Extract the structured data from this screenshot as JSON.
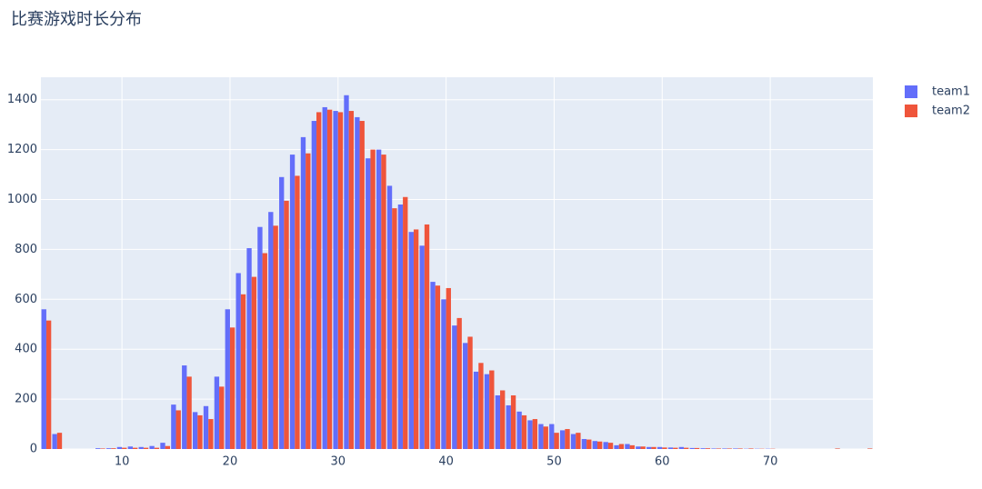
{
  "chart_data": {
    "type": "bar",
    "title": "比赛游戏时长分布",
    "x": [
      3,
      4,
      5,
      6,
      7,
      8,
      9,
      10,
      11,
      12,
      13,
      14,
      15,
      16,
      17,
      18,
      19,
      20,
      21,
      22,
      23,
      24,
      25,
      26,
      27,
      28,
      29,
      30,
      31,
      32,
      33,
      34,
      35,
      36,
      37,
      38,
      39,
      40,
      41,
      42,
      43,
      44,
      45,
      46,
      47,
      48,
      49,
      50,
      51,
      52,
      53,
      54,
      55,
      56,
      57,
      58,
      59,
      60,
      61,
      62,
      63,
      64,
      65,
      66,
      67,
      68,
      69,
      70,
      71,
      72,
      73,
      74,
      75,
      76,
      77,
      78,
      79
    ],
    "series": [
      {
        "name": "team1",
        "color": "#636efa",
        "values": [
          560,
          60,
          0,
          0,
          0,
          3,
          3,
          8,
          10,
          8,
          12,
          25,
          178,
          335,
          148,
          172,
          290,
          560,
          705,
          805,
          890,
          950,
          1090,
          1180,
          1250,
          1315,
          1370,
          1355,
          1418,
          1330,
          1165,
          1200,
          1055,
          980,
          870,
          815,
          670,
          600,
          495,
          425,
          310,
          300,
          215,
          175,
          150,
          115,
          100,
          100,
          75,
          60,
          40,
          32,
          28,
          15,
          20,
          10,
          8,
          8,
          6,
          8,
          4,
          3,
          2,
          2,
          2,
          1,
          1,
          1,
          0,
          0,
          0,
          0,
          0,
          0,
          0,
          0,
          0
        ]
      },
      {
        "name": "team2",
        "color": "#ef553b",
        "values": [
          515,
          65,
          0,
          0,
          0,
          2,
          3,
          5,
          5,
          5,
          5,
          12,
          155,
          290,
          135,
          120,
          250,
          487,
          620,
          690,
          785,
          895,
          995,
          1095,
          1185,
          1350,
          1360,
          1350,
          1355,
          1315,
          1200,
          1180,
          965,
          1010,
          880,
          900,
          655,
          645,
          525,
          450,
          345,
          315,
          235,
          215,
          135,
          120,
          90,
          65,
          80,
          65,
          38,
          30,
          25,
          20,
          15,
          10,
          8,
          6,
          5,
          5,
          4,
          3,
          2,
          2,
          2,
          2,
          1,
          1,
          0,
          0,
          0,
          0,
          0,
          2,
          0,
          0,
          2
        ]
      }
    ],
    "xlim": [
      2.5,
      79.5
    ],
    "xticks": [
      10,
      20,
      30,
      40,
      50,
      60,
      70
    ],
    "ylim": [
      0,
      1490
    ],
    "yticks": [
      0,
      200,
      400,
      600,
      800,
      1000,
      1200,
      1400
    ],
    "grid": true,
    "legend": "top-right"
  }
}
